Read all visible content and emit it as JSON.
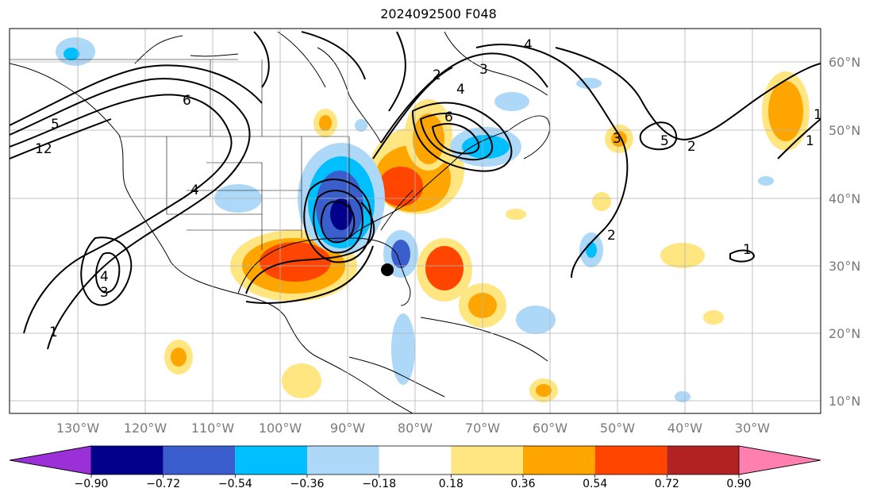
{
  "title": "2024092500 F048",
  "latitude_labels": [
    "60°N",
    "50°N",
    "40°N",
    "30°N",
    "20°N",
    "10°N"
  ],
  "longitude_labels": [
    "130°W",
    "120°W",
    "110°W",
    "100°W",
    "90°W",
    "80°W",
    "70°W",
    "60°W",
    "50°W",
    "40°W",
    "30°W"
  ],
  "colorbar": {
    "ticks": [
      "−0.90",
      "−0.72",
      "−0.54",
      "−0.36",
      "−0.18",
      "0.18",
      "0.36",
      "0.54",
      "0.72",
      "0.90"
    ],
    "colors": [
      "#9b30d9",
      "#00008b",
      "#3a5fcd",
      "#00bfff",
      "#add8f7",
      "#ffffff",
      "#ffe680",
      "#ffa500",
      "#ff4500",
      "#b22222",
      "#ff7fae"
    ]
  },
  "contour_labels": [
    "1",
    "1",
    "2",
    "3",
    "4",
    "5",
    "6",
    "12",
    "4",
    "6",
    "2",
    "4",
    "3",
    "5",
    "1",
    "2",
    "1",
    "4",
    "3"
  ],
  "marker": "storm-center-dot"
}
